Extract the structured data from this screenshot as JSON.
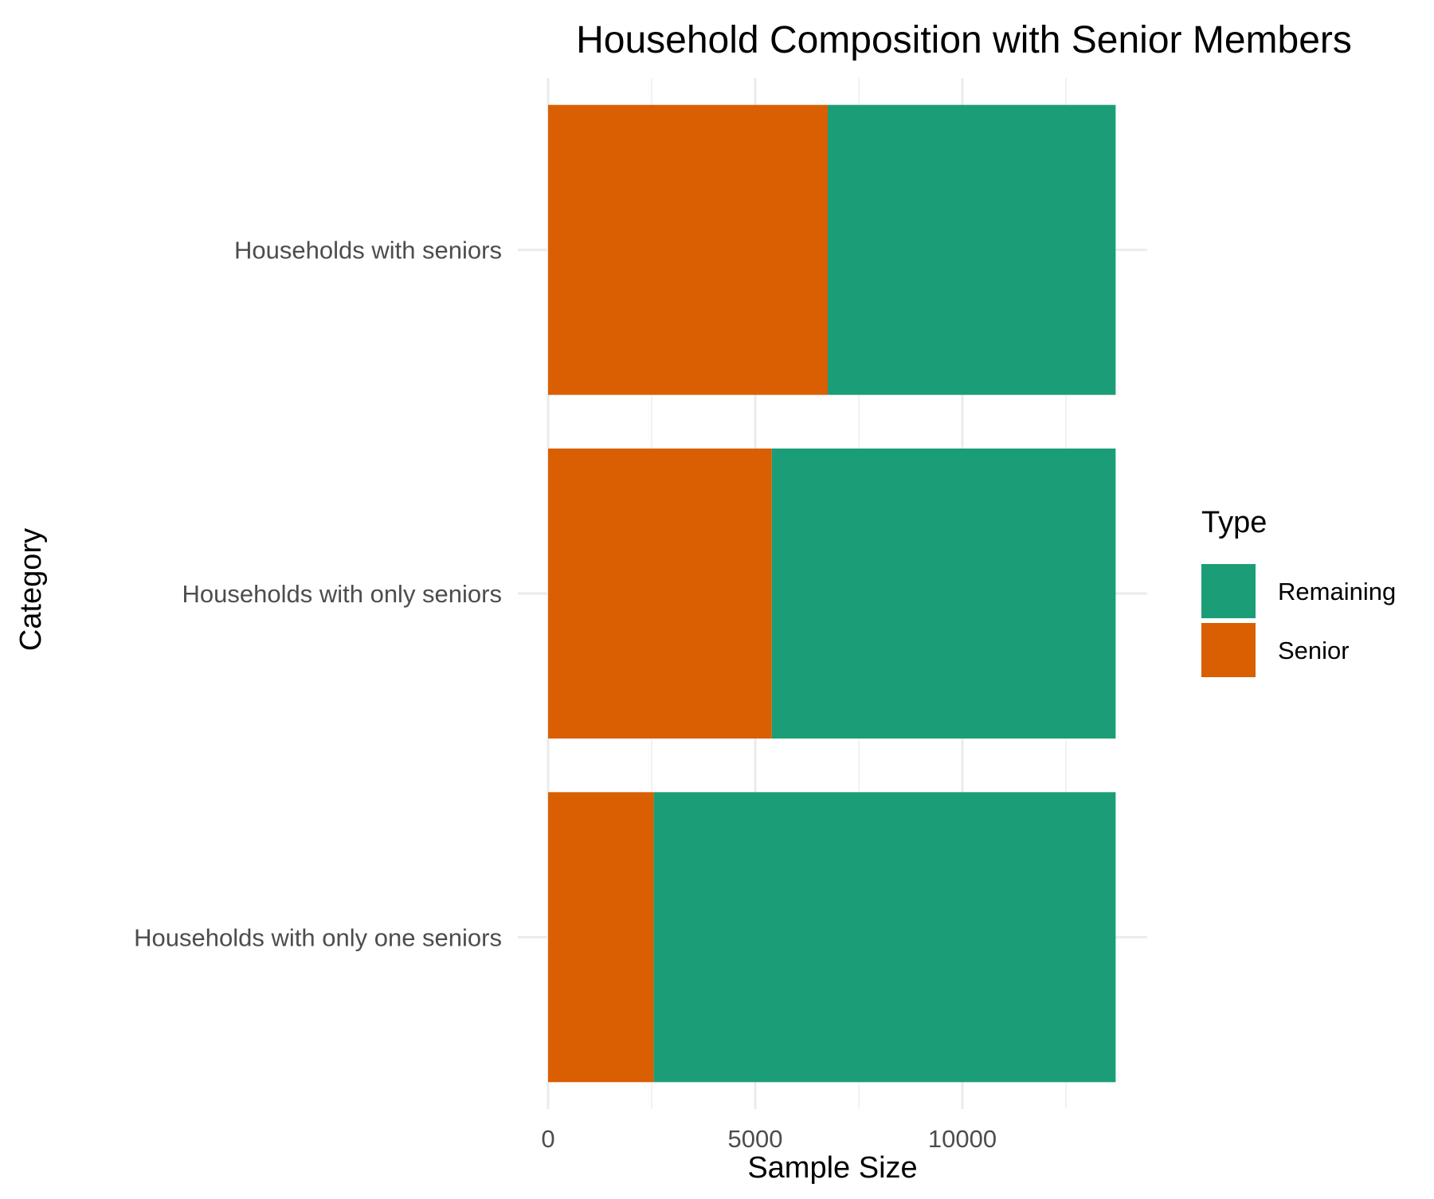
{
  "chart_data": {
    "type": "bar",
    "orientation": "horizontal",
    "stacked": true,
    "title": "Household Composition with Senior Members",
    "xlabel": "Sample Size",
    "ylabel": "Category",
    "categories": [
      "Households with seniors",
      "Households with only seniors",
      "Households with only one seniors"
    ],
    "series": [
      {
        "name": "Senior",
        "color": "#D95F02",
        "values": [
          6750,
          5400,
          2550
        ]
      },
      {
        "name": "Remaining",
        "color": "#1B9E77",
        "values": [
          6950,
          8300,
          11150
        ]
      }
    ],
    "xlim": [
      0,
      14400
    ],
    "xticks": [
      0,
      5000,
      10000
    ],
    "xtick_labels": [
      "0",
      "5000",
      "10000"
    ],
    "grid": true,
    "legend": {
      "title": "Type",
      "position": "right",
      "entries": [
        {
          "label": "Remaining",
          "color": "#1B9E77"
        },
        {
          "label": "Senior",
          "color": "#D95F02"
        }
      ]
    }
  }
}
